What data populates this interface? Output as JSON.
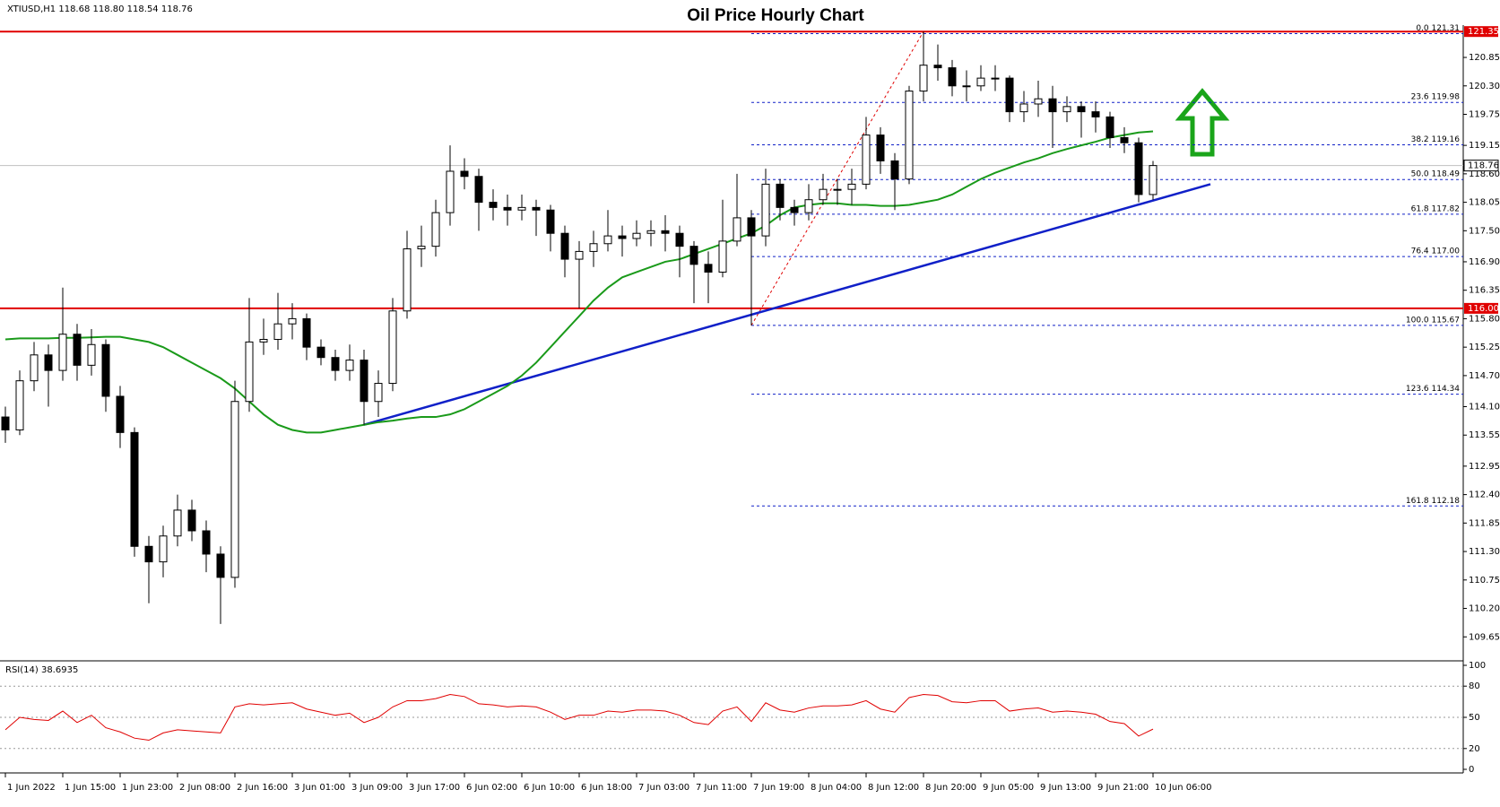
{
  "chart_data": {
    "type": "candlestick",
    "title": "Oil Price Hourly Chart",
    "symbol_info": "XTIUSD,H1  118.68 118.80 118.54 118.76",
    "categories": [
      "1 Jun 2022",
      null,
      null,
      null,
      "1 Jun 15:00",
      null,
      null,
      null,
      "1 Jun 23:00",
      null,
      null,
      null,
      "2 Jun 08:00",
      null,
      null,
      null,
      "2 Jun 16:00",
      null,
      null,
      null,
      "3 Jun 01:00",
      null,
      null,
      null,
      "3 Jun 09:00",
      null,
      null,
      null,
      "3 Jun 17:00",
      null,
      null,
      null,
      "6 Jun 02:00",
      null,
      null,
      null,
      "6 Jun 10:00",
      null,
      null,
      null,
      "6 Jun 18:00",
      null,
      null,
      null,
      "7 Jun 03:00",
      null,
      null,
      null,
      "7 Jun 11:00",
      null,
      null,
      null,
      "7 Jun 19:00",
      null,
      null,
      null,
      "8 Jun 04:00",
      null,
      null,
      null,
      "8 Jun 12:00",
      null,
      null,
      null,
      "8 Jun 20:00",
      null,
      null,
      null,
      "9 Jun 05:00",
      null,
      null,
      null,
      "9 Jun 13:00",
      null,
      null,
      null,
      "9 Jun 21:00",
      null,
      null,
      null,
      "10 Jun 06:00"
    ],
    "candles": [
      [
        113.9,
        114.1,
        113.4,
        113.65
      ],
      [
        113.65,
        114.8,
        113.55,
        114.6
      ],
      [
        114.6,
        115.35,
        114.4,
        115.1
      ],
      [
        115.1,
        115.3,
        114.1,
        114.8
      ],
      [
        114.8,
        116.4,
        114.6,
        115.5
      ],
      [
        115.5,
        115.7,
        114.6,
        114.9
      ],
      [
        114.9,
        115.6,
        114.7,
        115.3
      ],
      [
        115.3,
        115.4,
        114.0,
        114.3
      ],
      [
        114.3,
        114.5,
        113.3,
        113.6
      ],
      [
        113.6,
        113.7,
        111.2,
        111.4
      ],
      [
        111.4,
        111.6,
        110.3,
        111.1
      ],
      [
        111.1,
        111.8,
        110.8,
        111.6
      ],
      [
        111.6,
        112.4,
        111.4,
        112.1
      ],
      [
        112.1,
        112.3,
        111.5,
        111.7
      ],
      [
        111.7,
        111.9,
        110.9,
        111.25
      ],
      [
        111.25,
        111.4,
        109.9,
        110.8
      ],
      [
        110.8,
        114.6,
        110.6,
        114.2
      ],
      [
        114.2,
        116.2,
        114.0,
        115.35
      ],
      [
        115.35,
        115.8,
        115.1,
        115.4
      ],
      [
        115.4,
        116.3,
        115.2,
        115.7
      ],
      [
        115.7,
        116.1,
        115.4,
        115.8
      ],
      [
        115.8,
        115.9,
        115.0,
        115.25
      ],
      [
        115.25,
        115.4,
        114.9,
        115.05
      ],
      [
        115.05,
        115.2,
        114.6,
        114.8
      ],
      [
        114.8,
        115.3,
        114.6,
        115.0
      ],
      [
        115.0,
        115.2,
        113.75,
        114.2
      ],
      [
        114.2,
        114.8,
        113.9,
        114.55
      ],
      [
        114.55,
        116.2,
        114.4,
        115.95
      ],
      [
        115.95,
        117.5,
        115.8,
        117.15
      ],
      [
        117.15,
        117.6,
        116.8,
        117.2
      ],
      [
        117.2,
        118.1,
        117.0,
        117.85
      ],
      [
        117.85,
        119.15,
        117.6,
        118.65
      ],
      [
        118.65,
        118.9,
        118.3,
        118.55
      ],
      [
        118.55,
        118.7,
        117.5,
        118.05
      ],
      [
        118.05,
        118.3,
        117.7,
        117.95
      ],
      [
        117.95,
        118.2,
        117.6,
        117.9
      ],
      [
        117.9,
        118.2,
        117.7,
        117.95
      ],
      [
        117.95,
        118.1,
        117.4,
        117.9
      ],
      [
        117.9,
        118.0,
        117.1,
        117.45
      ],
      [
        117.45,
        117.6,
        116.6,
        116.95
      ],
      [
        116.95,
        117.3,
        116.0,
        117.1
      ],
      [
        117.1,
        117.5,
        116.8,
        117.25
      ],
      [
        117.25,
        117.9,
        117.1,
        117.4
      ],
      [
        117.4,
        117.6,
        117.0,
        117.35
      ],
      [
        117.35,
        117.7,
        117.2,
        117.45
      ],
      [
        117.45,
        117.7,
        117.2,
        117.5
      ],
      [
        117.5,
        117.8,
        117.1,
        117.45
      ],
      [
        117.45,
        117.6,
        116.6,
        117.2
      ],
      [
        117.2,
        117.3,
        116.1,
        116.85
      ],
      [
        116.85,
        117.1,
        116.1,
        116.7
      ],
      [
        116.7,
        118.1,
        116.6,
        117.3
      ],
      [
        117.3,
        118.6,
        117.2,
        117.75
      ],
      [
        117.75,
        117.9,
        115.67,
        117.4
      ],
      [
        117.4,
        118.7,
        117.2,
        118.4
      ],
      [
        118.4,
        118.5,
        117.7,
        117.95
      ],
      [
        117.95,
        118.1,
        117.6,
        117.85
      ],
      [
        117.85,
        118.4,
        117.7,
        118.1
      ],
      [
        118.1,
        118.6,
        118.0,
        118.3
      ],
      [
        118.3,
        118.5,
        118.0,
        118.3
      ],
      [
        118.3,
        118.7,
        118.0,
        118.4
      ],
      [
        118.4,
        119.7,
        118.3,
        119.35
      ],
      [
        119.35,
        119.5,
        118.6,
        118.85
      ],
      [
        118.85,
        119.0,
        117.9,
        118.5
      ],
      [
        118.5,
        120.3,
        118.4,
        120.2
      ],
      [
        120.2,
        121.35,
        120.0,
        120.7
      ],
      [
        120.7,
        121.1,
        120.4,
        120.65
      ],
      [
        120.65,
        120.8,
        120.1,
        120.3
      ],
      [
        120.3,
        120.6,
        120.0,
        120.3
      ],
      [
        120.3,
        120.7,
        120.2,
        120.45
      ],
      [
        120.45,
        120.7,
        120.2,
        120.45
      ],
      [
        120.45,
        120.5,
        119.6,
        119.8
      ],
      [
        119.8,
        120.2,
        119.6,
        119.95
      ],
      [
        119.95,
        120.4,
        119.7,
        120.05
      ],
      [
        120.05,
        120.3,
        119.1,
        119.8
      ],
      [
        119.8,
        120.1,
        119.6,
        119.9
      ],
      [
        119.9,
        120.0,
        119.3,
        119.8
      ],
      [
        119.8,
        120.0,
        119.4,
        119.7
      ],
      [
        119.7,
        119.8,
        119.1,
        119.3
      ],
      [
        119.3,
        119.5,
        119.0,
        119.2
      ],
      [
        119.2,
        119.3,
        118.05,
        118.2
      ],
      [
        118.2,
        118.85,
        118.1,
        118.76
      ]
    ],
    "moving_average": {
      "color": "#1a9a1a",
      "values": [
        115.4,
        115.42,
        115.42,
        115.42,
        115.43,
        115.43,
        115.44,
        115.45,
        115.45,
        115.4,
        115.35,
        115.25,
        115.1,
        114.95,
        114.8,
        114.65,
        114.45,
        114.2,
        113.95,
        113.75,
        113.65,
        113.6,
        113.6,
        113.65,
        113.7,
        113.75,
        113.8,
        113.83,
        113.87,
        113.9,
        113.9,
        113.95,
        114.05,
        114.2,
        114.35,
        114.5,
        114.7,
        114.95,
        115.25,
        115.55,
        115.85,
        116.15,
        116.4,
        116.6,
        116.7,
        116.8,
        116.9,
        116.95,
        117.05,
        117.15,
        117.25,
        117.35,
        117.45,
        117.6,
        117.8,
        117.95,
        118.0,
        118.03,
        118.03,
        118.0,
        118.0,
        117.98,
        117.98,
        118.0,
        118.05,
        118.1,
        118.2,
        118.35,
        118.5,
        118.62,
        118.72,
        118.82,
        118.9,
        119.0,
        119.08,
        119.15,
        119.22,
        119.3,
        119.35,
        119.4,
        119.42
      ]
    },
    "ylim": [
      109.62,
      121.44
    ],
    "yticks": [
      {
        "value": 109.65,
        "label": "109.65"
      },
      {
        "value": 110.2,
        "label": "110.20"
      },
      {
        "value": 110.75,
        "label": "110.75"
      },
      {
        "value": 111.3,
        "label": "111.30"
      },
      {
        "value": 111.85,
        "label": "111.85"
      },
      {
        "value": 112.4,
        "label": "112.40"
      },
      {
        "value": 112.95,
        "label": "112.95"
      },
      {
        "value": 113.55,
        "label": "113.55"
      },
      {
        "value": 114.1,
        "label": "114.10"
      },
      {
        "value": 114.7,
        "label": "114.70"
      },
      {
        "value": 115.25,
        "label": "115.25"
      },
      {
        "value": 115.8,
        "label": "115.80"
      },
      {
        "value": 116.35,
        "label": "116.35"
      },
      {
        "value": 116.9,
        "label": "116.90"
      },
      {
        "value": 117.5,
        "label": "117.50"
      },
      {
        "value": 118.05,
        "label": "118.05"
      },
      {
        "value": 118.6,
        "label": "118.60"
      },
      {
        "value": 119.15,
        "label": "119.15"
      },
      {
        "value": 119.75,
        "label": "119.75"
      },
      {
        "value": 120.3,
        "label": "120.30"
      },
      {
        "value": 120.85,
        "label": "120.85"
      }
    ],
    "levels": [
      {
        "value": 121.35,
        "label": "121.35",
        "color": "#e00000"
      },
      {
        "value": 116,
        "label": "116.00",
        "color": "#e00000"
      }
    ],
    "last_price": 118.76,
    "fib_start": 52,
    "fib_levels": [
      {
        "value": 121.31,
        "label": "0.0 121.31"
      },
      {
        "value": 119.98,
        "label": "23.6 119.98"
      },
      {
        "value": 119.16,
        "label": "38.2 119.16"
      },
      {
        "value": 118.49,
        "label": "50.0 118.49"
      },
      {
        "value": 117.82,
        "label": "61.8 117.82"
      },
      {
        "value": 117.0,
        "label": "76.4 117.00"
      },
      {
        "value": 115.67,
        "label": "100.0 115.67"
      },
      {
        "value": 114.34,
        "label": "123.6 114.34"
      },
      {
        "value": 112.18,
        "label": "161.8 112.18"
      }
    ],
    "swing": {
      "from": [
        52,
        115.67
      ],
      "to": [
        64,
        121.35
      ],
      "color": "#e00000"
    },
    "trendline": {
      "from": [
        25,
        113.75
      ],
      "to": [
        84,
        118.4
      ],
      "color": "#1020c8"
    },
    "rsi": {
      "label": "RSI(14) 38.6935",
      "color": "#e00000",
      "ylim": [
        0,
        100
      ],
      "yticks": [
        0,
        20,
        50,
        80,
        100
      ],
      "values": [
        38,
        50,
        48,
        47,
        56,
        45,
        52,
        40,
        36,
        30,
        28,
        35,
        38,
        37,
        36,
        35,
        60,
        63,
        62,
        63,
        64,
        58,
        55,
        52,
        54,
        45,
        50,
        60,
        66,
        66,
        68,
        72,
        70,
        63,
        62,
        60,
        61,
        60,
        55,
        48,
        52,
        52,
        56,
        55,
        57,
        57,
        56,
        52,
        45,
        43,
        56,
        60,
        46,
        64,
        57,
        55,
        59,
        61,
        61,
        62,
        66,
        58,
        55,
        69,
        72,
        71,
        65,
        64,
        66,
        66,
        56,
        58,
        59,
        55,
        56,
        55,
        53,
        46,
        44,
        32,
        38.69
      ]
    }
  }
}
